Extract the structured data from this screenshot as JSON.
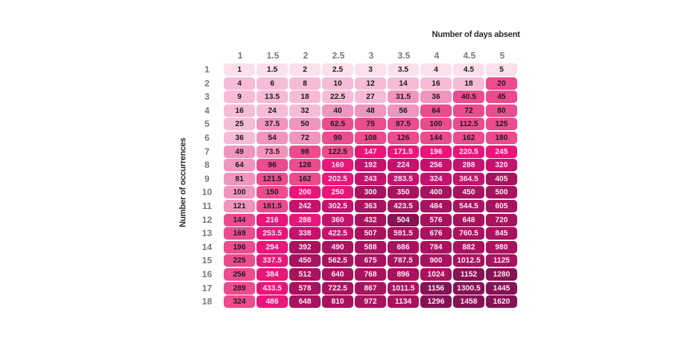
{
  "chart_data": {
    "type": "heatmap",
    "title": "",
    "xlabel": "Number of days absent",
    "ylabel": "Number of occurrences",
    "x_categories": [
      "1",
      "1.5",
      "2",
      "2.5",
      "3",
      "3.5",
      "4",
      "4.5",
      "5"
    ],
    "y_categories": [
      "1",
      "2",
      "3",
      "4",
      "5",
      "6",
      "7",
      "8",
      "9",
      "10",
      "11",
      "12",
      "13",
      "14",
      "15",
      "16",
      "17",
      "18"
    ],
    "values": [
      [
        "1",
        "1.5",
        "2",
        "2.5",
        "3",
        "3.5",
        "4",
        "4.5",
        "5"
      ],
      [
        "4",
        "6",
        "8",
        "10",
        "12",
        "14",
        "16",
        "18",
        "20"
      ],
      [
        "9",
        "13.5",
        "18",
        "22.5",
        "27",
        "31.5",
        "36",
        "40.5",
        "45"
      ],
      [
        "16",
        "24",
        "32",
        "40",
        "48",
        "56",
        "64",
        "72",
        "80"
      ],
      [
        "25",
        "37.5",
        "50",
        "62.5",
        "75",
        "87.5",
        "100",
        "112.5",
        "125"
      ],
      [
        "36",
        "54",
        "72",
        "90",
        "108",
        "126",
        "144",
        "162",
        "180"
      ],
      [
        "49",
        "73.5",
        "98",
        "122.5",
        "147",
        "171.5",
        "196",
        "220.5",
        "245"
      ],
      [
        "64",
        "96",
        "128",
        "160",
        "192",
        "224",
        "256",
        "288",
        "320"
      ],
      [
        "81",
        "121.5",
        "162",
        "202.5",
        "243",
        "283.5",
        "324",
        "364.5",
        "405"
      ],
      [
        "100",
        "150",
        "200",
        "250",
        "300",
        "350",
        "400",
        "450",
        "500"
      ],
      [
        "121",
        "181.5",
        "242",
        "302.5",
        "363",
        "423.5",
        "484",
        "544.5",
        "605"
      ],
      [
        "144",
        "216",
        "288",
        "360",
        "432",
        "504",
        "576",
        "648",
        "720"
      ],
      [
        "169",
        "253.5",
        "338",
        "422.5",
        "507",
        "591.5",
        "676",
        "760.5",
        "845"
      ],
      [
        "196",
        "294",
        "392",
        "490",
        "588",
        "686",
        "784",
        "882",
        "980"
      ],
      [
        "225",
        "337.5",
        "450",
        "562.5",
        "675",
        "787.5",
        "900",
        "1012.5",
        "1125"
      ],
      [
        "256",
        "384",
        "512",
        "640",
        "768",
        "896",
        "1024",
        "1152",
        "1280"
      ],
      [
        "289",
        "433.5",
        "578",
        "722.5",
        "867",
        "1011.5",
        "1156",
        "1300.5",
        "1445"
      ],
      [
        "324",
        "486",
        "648",
        "810",
        "972",
        "1134",
        "1296",
        "1458",
        "1620"
      ]
    ],
    "color_levels": [
      [
        0,
        0,
        0,
        0,
        0,
        0,
        0,
        0,
        0
      ],
      [
        1,
        1,
        1,
        1,
        1,
        1,
        1,
        1,
        3
      ],
      [
        1,
        1,
        1,
        1,
        1,
        2,
        2,
        3,
        3
      ],
      [
        1,
        1,
        1,
        2,
        2,
        2,
        3,
        3,
        3
      ],
      [
        1,
        2,
        2,
        3,
        3,
        3,
        3,
        3,
        3
      ],
      [
        1,
        2,
        2,
        3,
        3,
        3,
        3,
        3,
        3
      ],
      [
        2,
        2,
        3,
        3,
        4,
        4,
        4,
        4,
        4
      ],
      [
        2,
        3,
        3,
        4,
        5,
        5,
        5,
        5,
        5
      ],
      [
        2,
        3,
        3,
        4,
        5,
        5,
        5,
        5,
        6
      ],
      [
        2,
        3,
        4,
        4,
        6,
        6,
        6,
        6,
        6
      ],
      [
        2,
        3,
        5,
        5,
        6,
        6,
        6,
        6,
        6
      ],
      [
        3,
        4,
        4,
        5,
        6,
        7,
        6,
        6,
        6
      ],
      [
        3,
        4,
        5,
        5,
        6,
        6,
        6,
        6,
        6
      ],
      [
        3,
        4,
        6,
        6,
        6,
        6,
        6,
        6,
        6
      ],
      [
        3,
        4,
        6,
        6,
        6,
        6,
        6,
        6,
        6
      ],
      [
        3,
        4,
        6,
        6,
        6,
        6,
        6,
        7,
        7
      ],
      [
        3,
        4,
        6,
        6,
        6,
        6,
        7,
        7,
        7
      ],
      [
        3,
        4,
        6,
        6,
        6,
        6,
        7,
        7,
        7
      ]
    ],
    "palette": [
      "#fbe0ec",
      "#f6bcd7",
      "#f095bf",
      "#ea4c8f",
      "#e8167a",
      "#c4136e",
      "#a8135f",
      "#861256"
    ],
    "legend": null,
    "grid": false
  }
}
